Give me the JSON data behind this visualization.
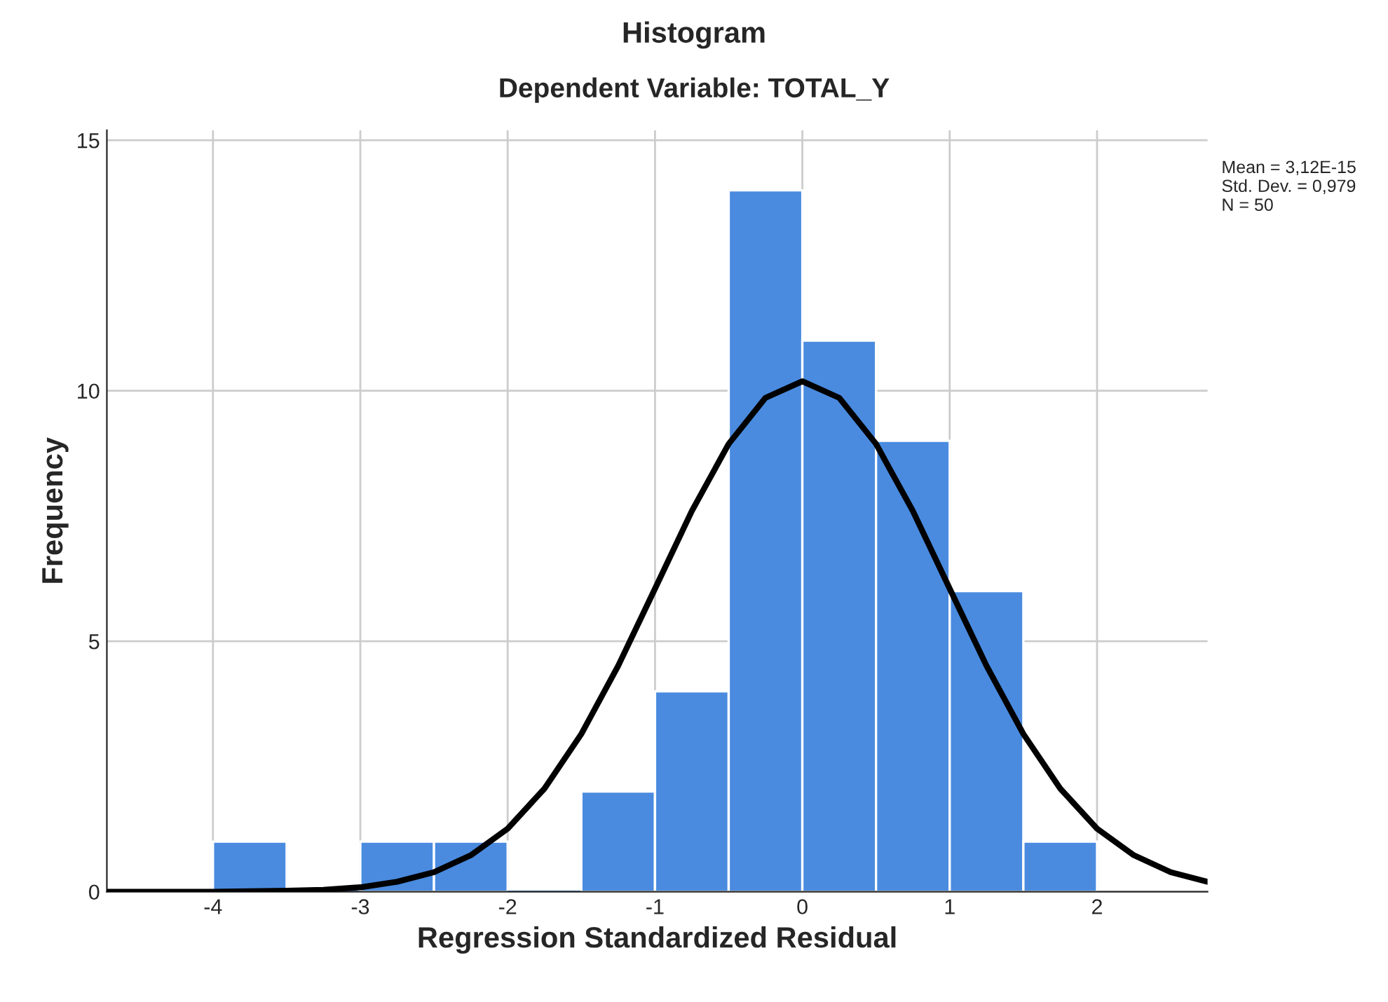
{
  "chart_data": {
    "type": "histogram",
    "title": "Histogram",
    "subtitle": "Dependent Variable: TOTAL_Y",
    "xlabel": "Regression Standardized Residual",
    "ylabel": "Frequency",
    "bins": [
      -4,
      -3.5,
      -3,
      -2.5,
      -2,
      -1.5,
      -1,
      -0.5,
      0,
      0.5,
      1,
      1.5,
      2
    ],
    "values": [
      1,
      0,
      1,
      1,
      0,
      2,
      4,
      14,
      11,
      9,
      6,
      1
    ],
    "color": "#4a8be0",
    "series": [
      {
        "type": "line",
        "color": "#000000",
        "x": [
          -4.72,
          -4,
          -3.5,
          -3.25,
          -3,
          -2.75,
          -2.5,
          -2.25,
          -2,
          -1.75,
          -1.5,
          -1.25,
          -1,
          -0.75,
          -0.5,
          -0.25,
          0,
          0.25,
          0.5,
          0.75,
          1,
          1.25,
          1.5,
          1.75,
          2,
          2.25,
          2.5,
          2.75
        ],
        "values": [
          0,
          0,
          0.02,
          0.04,
          0.09,
          0.2,
          0.39,
          0.73,
          1.26,
          2.06,
          3.15,
          4.51,
          6.05,
          7.6,
          8.94,
          9.86,
          10.19,
          9.86,
          8.94,
          7.6,
          6.05,
          4.51,
          3.15,
          2.06,
          1.26,
          0.73,
          0.39,
          0.2
        ]
      }
    ],
    "xlim": [
      -4.72,
      2.75
    ],
    "xticks": [
      -4,
      -3,
      -2,
      -1,
      0,
      1,
      2
    ],
    "ylim": [
      0,
      15.2
    ],
    "yticks": [
      0,
      5,
      10,
      15
    ],
    "grid": true,
    "line_style": "solid",
    "annotations": [
      "Mean = 3,12E-15\nStd. Dev. = 0,979\nN = 50"
    ]
  }
}
